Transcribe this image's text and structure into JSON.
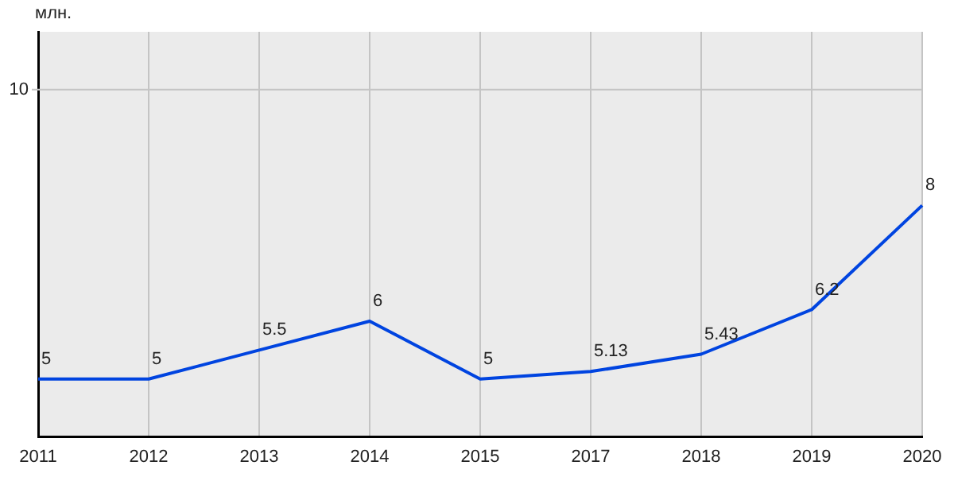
{
  "chart_data": {
    "type": "line",
    "ylabel": "млн.",
    "categories": [
      "2011",
      "2012",
      "2013",
      "2014",
      "2015",
      "2017",
      "2018",
      "2019",
      "2020"
    ],
    "series": [
      {
        "color": "#0044e0",
        "values": [
          5,
          5,
          5.5,
          6,
          5,
          5.13,
          5.43,
          6.2,
          8
        ]
      }
    ],
    "ylim": [
      4,
      11
    ],
    "ref_lines": [
      {
        "axis": "y",
        "value": 10,
        "label": "10",
        "color": "#c4c4c4"
      }
    ],
    "grid": "x",
    "legend": false,
    "marker": "none",
    "line_style": "solid",
    "data_labels": true
  }
}
